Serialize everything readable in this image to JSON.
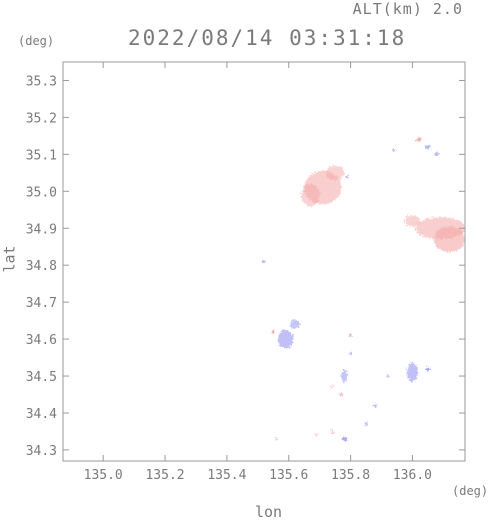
{
  "header": {
    "altitude_label": "ALT(km) 2.0",
    "timestamp": "2022/08/14 03:31:18"
  },
  "axes": {
    "x_unit": "(deg)",
    "y_unit": "(deg)",
    "x_name": "lon",
    "y_name": "lat"
  },
  "chart_data": {
    "type": "heatmap",
    "xlabel": "lon",
    "ylabel": "lat",
    "xlim": [
      134.87,
      136.17
    ],
    "ylim": [
      34.27,
      35.35
    ],
    "x_ticks": [
      "135.0",
      "135.2",
      "135.4",
      "135.6",
      "135.8",
      "136.0"
    ],
    "y_ticks": [
      "34.3",
      "34.4",
      "34.5",
      "34.6",
      "34.7",
      "34.8",
      "34.9",
      "35.0",
      "35.1",
      "35.2",
      "35.3"
    ],
    "grid": false,
    "colors": {
      "positive": "#f4a6a6",
      "negative": "#8c8cee",
      "frame": "#9a9a9a",
      "text": "#7a7a7a"
    },
    "regions": [
      {
        "lon": 135.71,
        "lat": 35.01,
        "rx": 0.06,
        "ry": 0.045,
        "sign": "pos",
        "alpha": 0.55
      },
      {
        "lon": 135.67,
        "lat": 34.99,
        "rx": 0.03,
        "ry": 0.03,
        "sign": "pos",
        "alpha": 0.5
      },
      {
        "lon": 135.75,
        "lat": 35.05,
        "rx": 0.03,
        "ry": 0.02,
        "sign": "pos",
        "alpha": 0.5
      },
      {
        "lon": 136.09,
        "lat": 34.9,
        "rx": 0.08,
        "ry": 0.03,
        "sign": "pos",
        "alpha": 0.55
      },
      {
        "lon": 136.12,
        "lat": 34.87,
        "rx": 0.05,
        "ry": 0.035,
        "sign": "pos",
        "alpha": 0.6
      },
      {
        "lon": 136.0,
        "lat": 34.92,
        "rx": 0.025,
        "ry": 0.015,
        "sign": "pos",
        "alpha": 0.5
      },
      {
        "lon": 136.02,
        "lat": 35.14,
        "rx": 0.008,
        "ry": 0.006,
        "sign": "pos",
        "alpha": 0.9
      },
      {
        "lon": 136.05,
        "lat": 35.12,
        "rx": 0.01,
        "ry": 0.005,
        "sign": "neg",
        "alpha": 0.6
      },
      {
        "lon": 136.08,
        "lat": 35.1,
        "rx": 0.008,
        "ry": 0.005,
        "sign": "neg",
        "alpha": 0.6
      },
      {
        "lon": 135.94,
        "lat": 35.11,
        "rx": 0.004,
        "ry": 0.003,
        "sign": "neg",
        "alpha": 0.6
      },
      {
        "lon": 135.59,
        "lat": 34.6,
        "rx": 0.025,
        "ry": 0.025,
        "sign": "neg",
        "alpha": 0.55
      },
      {
        "lon": 135.62,
        "lat": 34.64,
        "rx": 0.015,
        "ry": 0.012,
        "sign": "neg",
        "alpha": 0.5
      },
      {
        "lon": 135.55,
        "lat": 34.62,
        "rx": 0.005,
        "ry": 0.004,
        "sign": "pos",
        "alpha": 0.9
      },
      {
        "lon": 135.78,
        "lat": 34.5,
        "rx": 0.01,
        "ry": 0.018,
        "sign": "neg",
        "alpha": 0.5
      },
      {
        "lon": 135.77,
        "lat": 34.45,
        "rx": 0.006,
        "ry": 0.006,
        "sign": "pos",
        "alpha": 0.6
      },
      {
        "lon": 136.0,
        "lat": 34.51,
        "rx": 0.018,
        "ry": 0.025,
        "sign": "neg",
        "alpha": 0.55
      },
      {
        "lon": 136.05,
        "lat": 34.52,
        "rx": 0.006,
        "ry": 0.005,
        "sign": "neg",
        "alpha": 0.8
      },
      {
        "lon": 135.78,
        "lat": 34.33,
        "rx": 0.01,
        "ry": 0.006,
        "sign": "neg",
        "alpha": 0.7
      },
      {
        "lon": 135.85,
        "lat": 34.37,
        "rx": 0.006,
        "ry": 0.005,
        "sign": "neg",
        "alpha": 0.6
      },
      {
        "lon": 135.88,
        "lat": 34.42,
        "rx": 0.005,
        "ry": 0.005,
        "sign": "neg",
        "alpha": 0.6
      },
      {
        "lon": 135.92,
        "lat": 34.5,
        "rx": 0.005,
        "ry": 0.004,
        "sign": "neg",
        "alpha": 0.5
      },
      {
        "lon": 135.74,
        "lat": 34.35,
        "rx": 0.006,
        "ry": 0.004,
        "sign": "pos",
        "alpha": 0.6
      },
      {
        "lon": 135.69,
        "lat": 34.34,
        "rx": 0.005,
        "ry": 0.004,
        "sign": "pos",
        "alpha": 0.6
      },
      {
        "lon": 135.8,
        "lat": 34.61,
        "rx": 0.005,
        "ry": 0.005,
        "sign": "pos",
        "alpha": 0.8
      },
      {
        "lon": 135.8,
        "lat": 34.56,
        "rx": 0.004,
        "ry": 0.004,
        "sign": "neg",
        "alpha": 0.5
      },
      {
        "lon": 135.74,
        "lat": 34.47,
        "rx": 0.005,
        "ry": 0.003,
        "sign": "pos",
        "alpha": 0.6
      },
      {
        "lon": 135.56,
        "lat": 34.33,
        "rx": 0.004,
        "ry": 0.003,
        "sign": "neg",
        "alpha": 0.6
      },
      {
        "lon": 135.52,
        "lat": 34.81,
        "rx": 0.004,
        "ry": 0.004,
        "sign": "neg",
        "alpha": 0.6
      },
      {
        "lon": 135.79,
        "lat": 35.04,
        "rx": 0.004,
        "ry": 0.003,
        "sign": "neg",
        "alpha": 0.6
      }
    ]
  }
}
